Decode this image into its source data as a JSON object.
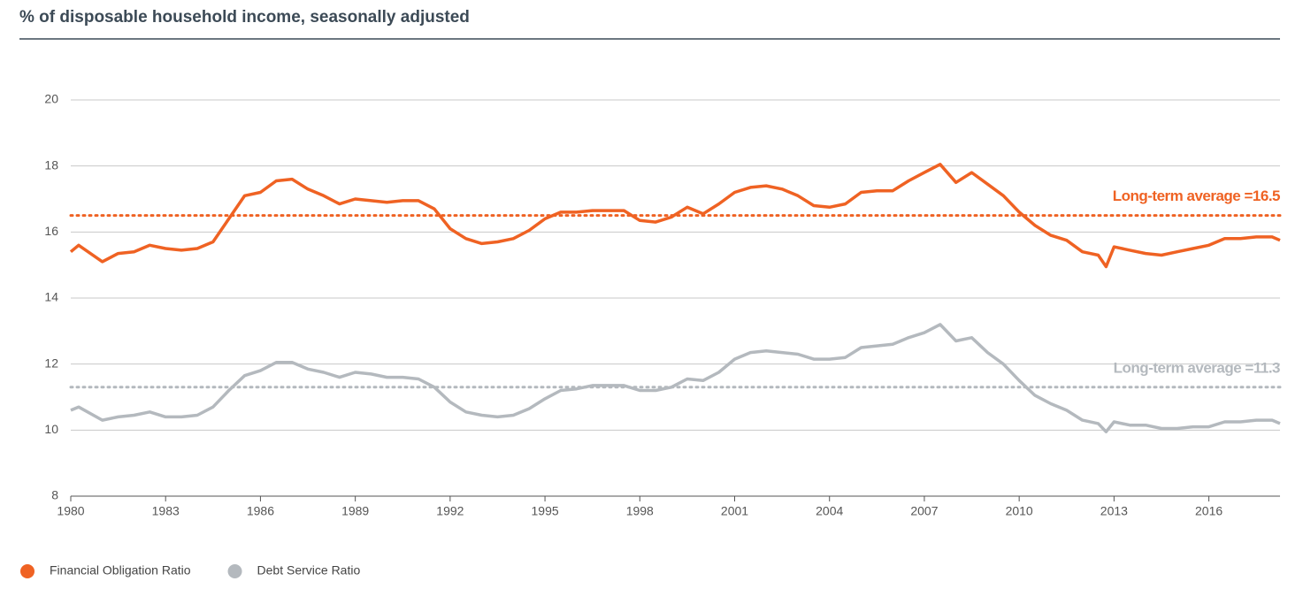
{
  "chart_data": {
    "type": "line",
    "title": "% of disposable household income, seasonally adjusted",
    "x": [
      1980,
      1980.25,
      1981,
      1981.5,
      1982,
      1982.5,
      1983,
      1983.5,
      1984,
      1984.5,
      1985,
      1985.5,
      1986,
      1986.5,
      1987,
      1987.5,
      1988,
      1988.5,
      1989,
      1989.5,
      1990,
      1990.5,
      1991,
      1991.5,
      1992,
      1992.5,
      1993,
      1993.5,
      1994,
      1994.5,
      1995,
      1995.5,
      1996,
      1996.5,
      1997,
      1997.5,
      1998,
      1998.5,
      1999,
      1999.5,
      2000,
      2000.5,
      2001,
      2001.5,
      2002,
      2002.5,
      2003,
      2003.5,
      2004,
      2004.5,
      2005,
      2005.5,
      2006,
      2006.5,
      2007,
      2007.5,
      2008,
      2008.5,
      2009,
      2009.5,
      2010,
      2010.5,
      2011,
      2011.5,
      2012,
      2012.5,
      2012.75,
      2013,
      2013.5,
      2014,
      2014.5,
      2015,
      2015.5,
      2016,
      2016.5,
      2017,
      2017.5,
      2018,
      2018.25
    ],
    "series": [
      {
        "name": "Financial Obligation Ratio",
        "color": "#ef6223",
        "values": [
          15.4,
          15.6,
          15.1,
          15.35,
          15.4,
          15.6,
          15.5,
          15.45,
          15.5,
          15.7,
          16.4,
          17.1,
          17.2,
          17.55,
          17.6,
          17.3,
          17.1,
          16.85,
          17.0,
          16.95,
          16.9,
          16.95,
          16.95,
          16.7,
          16.1,
          15.8,
          15.65,
          15.7,
          15.8,
          16.05,
          16.4,
          16.6,
          16.6,
          16.65,
          16.65,
          16.65,
          16.35,
          16.3,
          16.45,
          16.75,
          16.55,
          16.85,
          17.2,
          17.35,
          17.4,
          17.3,
          17.1,
          16.8,
          16.75,
          16.85,
          17.2,
          17.25,
          17.25,
          17.55,
          17.8,
          18.05,
          17.5,
          17.8,
          17.45,
          17.1,
          16.6,
          16.2,
          15.9,
          15.75,
          15.4,
          15.3,
          14.95,
          15.55,
          15.45,
          15.35,
          15.3,
          15.4,
          15.5,
          15.6,
          15.8,
          15.8,
          15.85,
          15.85,
          15.75
        ]
      },
      {
        "name": "Debt Service Ratio",
        "color": "#b4b9be",
        "values": [
          10.6,
          10.7,
          10.3,
          10.4,
          10.45,
          10.55,
          10.4,
          10.4,
          10.45,
          10.7,
          11.2,
          11.65,
          11.8,
          12.05,
          12.05,
          11.85,
          11.75,
          11.6,
          11.75,
          11.7,
          11.6,
          11.6,
          11.55,
          11.3,
          10.85,
          10.55,
          10.45,
          10.4,
          10.45,
          10.65,
          10.95,
          11.2,
          11.25,
          11.35,
          11.35,
          11.35,
          11.2,
          11.2,
          11.3,
          11.55,
          11.5,
          11.75,
          12.15,
          12.35,
          12.4,
          12.35,
          12.3,
          12.15,
          12.15,
          12.2,
          12.5,
          12.55,
          12.6,
          12.8,
          12.95,
          13.2,
          12.7,
          12.8,
          12.35,
          12.0,
          11.5,
          11.05,
          10.8,
          10.6,
          10.3,
          10.2,
          9.95,
          10.25,
          10.15,
          10.15,
          10.05,
          10.05,
          10.1,
          10.1,
          10.25,
          10.25,
          10.3,
          10.3,
          10.2
        ]
      }
    ],
    "reference_lines": [
      {
        "value": 16.5,
        "label": "Long-term average =16.5",
        "color": "#ef6223"
      },
      {
        "value": 11.3,
        "label": "Long-term average =11.3",
        "color": "#b4b9be"
      }
    ],
    "xlim": [
      1980,
      2018.25
    ],
    "xticks": [
      1980,
      1983,
      1986,
      1989,
      1992,
      1995,
      1998,
      2001,
      2004,
      2007,
      2010,
      2013,
      2016
    ],
    "ylim": [
      8,
      20
    ],
    "yticks": [
      8,
      10,
      12,
      14,
      16,
      18,
      20
    ],
    "grid": true,
    "legend": "bottom-left"
  }
}
